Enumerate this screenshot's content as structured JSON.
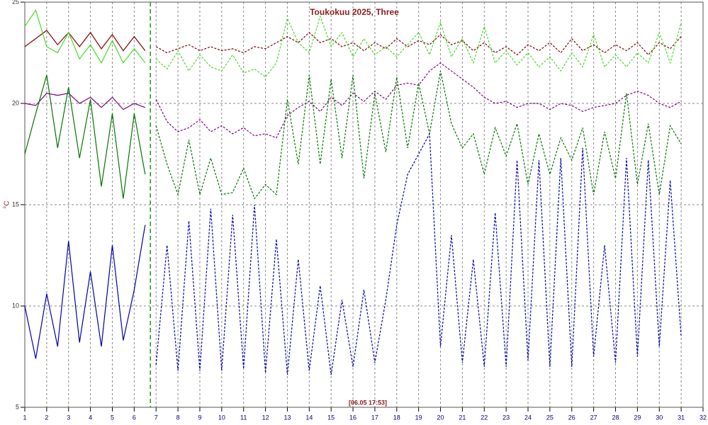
{
  "chart_data": {
    "type": "line",
    "title": "Toukokuu 2025, Three",
    "y_label": "°C",
    "annotation": "[06.05 17:53]",
    "marker_x": 6.74,
    "marker_color": "#119911",
    "x": [
      1,
      1.5,
      2,
      2.5,
      3,
      3.5,
      4,
      4.5,
      5,
      5.5,
      6,
      6.5,
      7,
      7.5,
      8,
      8.5,
      9,
      9.5,
      10,
      10.5,
      11,
      11.5,
      12,
      12.5,
      13,
      13.5,
      14,
      14.5,
      15,
      15.5,
      16,
      16.5,
      17,
      17.5,
      18,
      18.5,
      19,
      19.5,
      20,
      20.5,
      21,
      21.5,
      22,
      22.5,
      23,
      23.5,
      24,
      24.5,
      25,
      25.5,
      26,
      26.5,
      27,
      27.5,
      28,
      28.5,
      29,
      29.5,
      30,
      30.5,
      31
    ],
    "series": [
      {
        "color": "#800000",
        "values": [
          22.8,
          23.2,
          23.6,
          22.9,
          23.5,
          22.8,
          23.5,
          22.7,
          23.4,
          22.6,
          23.3,
          22.6,
          22.8,
          22.5,
          22.7,
          22.9,
          22.6,
          22.8,
          22.6,
          22.7,
          22.5,
          22.8,
          22.7,
          23.0,
          23.3,
          23.0,
          23.5,
          23.0,
          23.2,
          22.8,
          23.0,
          22.6,
          23.0,
          22.7,
          23.2,
          22.8,
          23.1,
          22.9,
          23.4,
          22.9,
          23.1,
          22.6,
          23.0,
          22.5,
          22.8,
          22.4,
          22.9,
          22.6,
          23.0,
          22.5,
          23.2,
          22.6,
          22.9,
          22.5,
          22.9,
          22.6,
          23.0,
          22.4,
          23.0,
          22.7,
          23.3
        ]
      },
      {
        "color": "#44dd22",
        "values": [
          23.8,
          24.6,
          22.8,
          22.5,
          23.5,
          22.2,
          22.9,
          22.0,
          23.1,
          22.0,
          22.7,
          22.0,
          22.2,
          21.7,
          22.6,
          21.6,
          22.4,
          21.8,
          21.6,
          22.4,
          21.5,
          21.7,
          21.3,
          22.0,
          24.2,
          23.0,
          22.5,
          24.3,
          22.8,
          23.5,
          22.3,
          23.2,
          22.4,
          22.8,
          22.3,
          22.9,
          23.5,
          22.4,
          24.0,
          22.3,
          23.2,
          22.0,
          23.8,
          22.0,
          22.6,
          21.9,
          22.5,
          21.8,
          22.3,
          21.6,
          22.5,
          21.8,
          23.4,
          21.8,
          22.4,
          21.8,
          22.5,
          22.0,
          23.5,
          22.0,
          24.0
        ]
      },
      {
        "color": "#800080",
        "values": [
          20.0,
          19.9,
          20.5,
          20.4,
          20.5,
          20.0,
          20.3,
          19.8,
          20.3,
          19.7,
          20.0,
          19.8,
          20.2,
          19.1,
          18.6,
          18.8,
          19.2,
          18.6,
          18.9,
          18.5,
          18.8,
          18.4,
          18.5,
          18.3,
          19.4,
          19.8,
          20.1,
          19.6,
          20.3,
          19.9,
          20.5,
          20.1,
          20.6,
          20.2,
          20.9,
          21.0,
          20.9,
          21.6,
          22.0,
          21.6,
          21.2,
          20.8,
          20.3,
          20.0,
          20.1,
          19.8,
          20.0,
          20.0,
          19.7,
          20.0,
          19.9,
          19.6,
          19.8,
          19.9,
          20.0,
          20.4,
          20.6,
          20.4,
          20.0,
          19.8,
          20.1
        ]
      },
      {
        "color": "#007700",
        "values": [
          17.5,
          19.5,
          21.4,
          17.8,
          20.8,
          17.3,
          20.2,
          15.9,
          19.5,
          15.3,
          19.5,
          16.5,
          18.9,
          17.0,
          15.5,
          18.2,
          15.5,
          17.3,
          15.5,
          15.6,
          16.8,
          15.3,
          16.0,
          15.5,
          20.2,
          17.0,
          21.4,
          17.0,
          21.2,
          17.3,
          21.4,
          16.3,
          20.5,
          17.6,
          21.3,
          17.8,
          21.0,
          18.5,
          21.6,
          19.0,
          17.8,
          18.5,
          16.5,
          18.8,
          17.4,
          19.0,
          16.0,
          18.5,
          16.5,
          18.3,
          17.2,
          18.8,
          15.5,
          18.6,
          16.3,
          20.5,
          16.0,
          19.0,
          15.5,
          18.9,
          18.0
        ]
      },
      {
        "color": "#0000aa",
        "values": [
          10.0,
          7.4,
          10.6,
          8.0,
          13.2,
          8.2,
          11.7,
          8.0,
          13.0,
          8.3,
          10.8,
          14.0,
          7.1,
          13.0,
          6.8,
          14.2,
          6.8,
          14.8,
          6.8,
          14.5,
          6.9,
          15.0,
          6.7,
          13.3,
          6.6,
          12.3,
          6.8,
          11.0,
          6.6,
          10.3,
          7.0,
          10.8,
          7.2,
          10.3,
          14.0,
          16.5,
          17.5,
          18.5,
          8.0,
          13.5,
          7.2,
          12.3,
          7.0,
          14.6,
          7.0,
          17.2,
          7.3,
          17.2,
          7.0,
          17.3,
          7.0,
          17.8,
          7.5,
          13.0,
          7.2,
          17.3,
          7.5,
          17.2,
          8.0,
          16.2,
          8.5
        ]
      }
    ],
    "xlim": [
      1,
      32
    ],
    "xticks": [
      1,
      2,
      3,
      4,
      5,
      6,
      7,
      8,
      9,
      10,
      11,
      12,
      13,
      14,
      15,
      16,
      17,
      18,
      19,
      20,
      21,
      22,
      23,
      24,
      25,
      26,
      27,
      28,
      29,
      30,
      31,
      32
    ],
    "ylim": [
      5,
      25
    ],
    "yticks": [
      5,
      10,
      15,
      20,
      25
    ],
    "grid": true
  }
}
